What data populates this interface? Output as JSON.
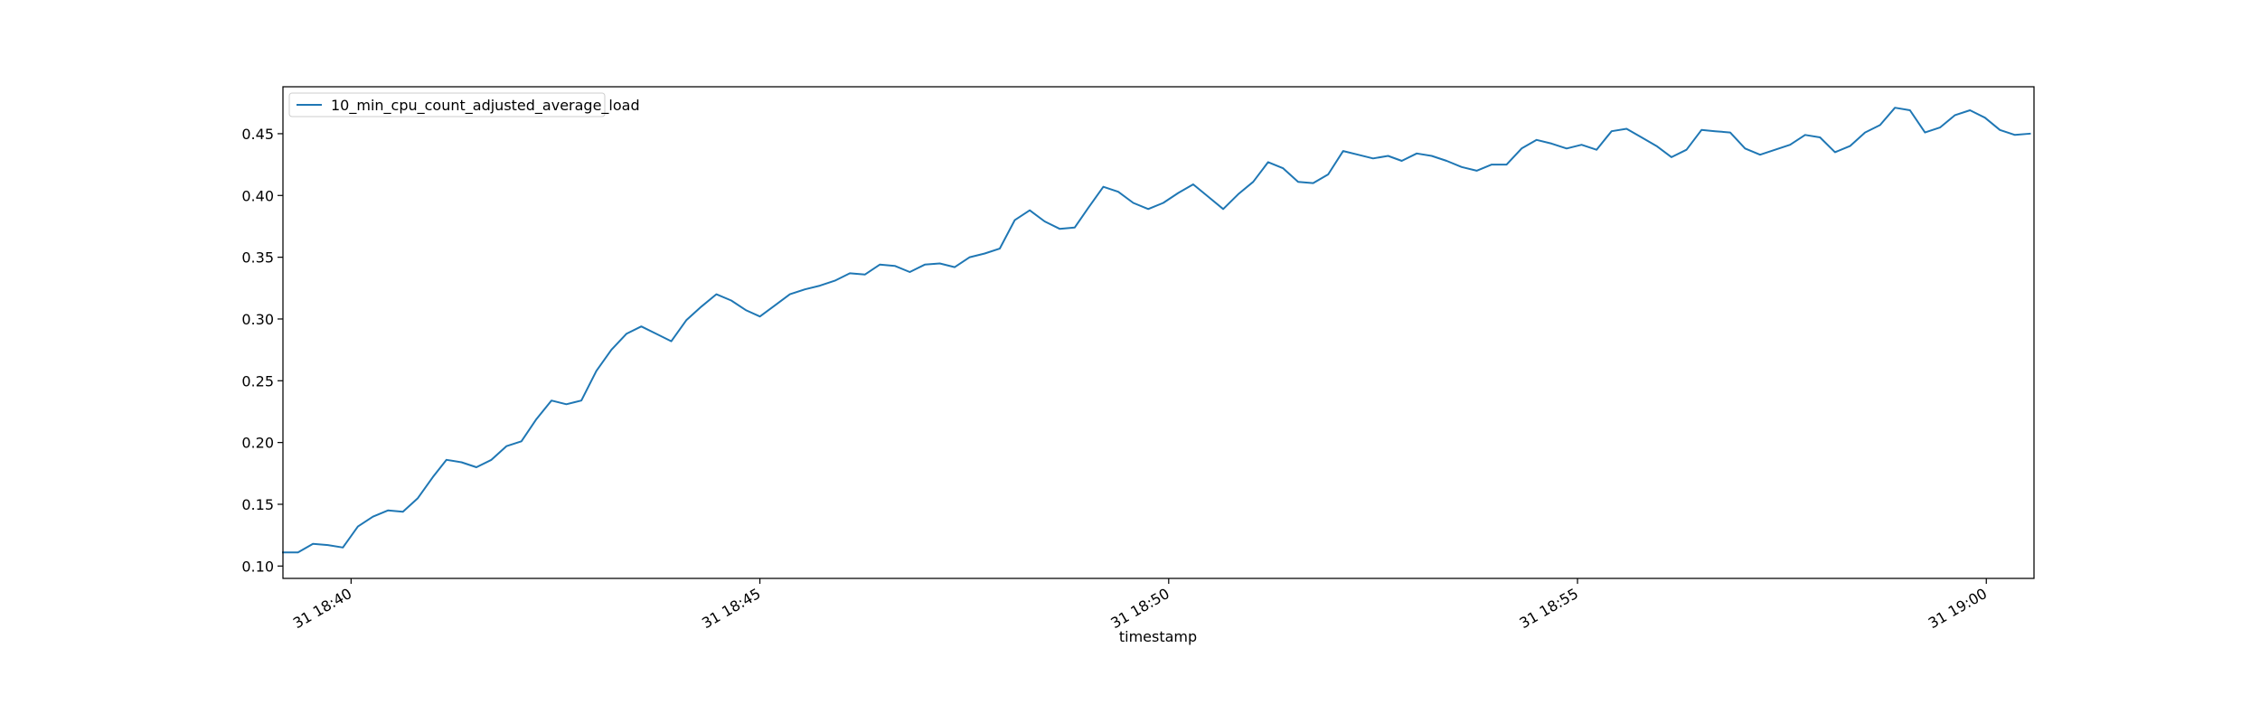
{
  "chart_data": {
    "type": "line",
    "title": "",
    "xlabel": "timestamp",
    "ylabel": "",
    "xlim": [
      "18:39:10",
      "19:00:35"
    ],
    "ylim": [
      0.09,
      0.488
    ],
    "grid": false,
    "legend_position": "top-left",
    "x_ticks": [
      {
        "value": "18:40:00",
        "label": "31 18:40"
      },
      {
        "value": "18:45:00",
        "label": "31 18:45"
      },
      {
        "value": "18:50:00",
        "label": "31 18:50"
      },
      {
        "value": "18:55:00",
        "label": "31 18:55"
      },
      {
        "value": "19:00:00",
        "label": "31 19:00"
      }
    ],
    "y_ticks": [
      {
        "value": 0.1,
        "label": "0.10"
      },
      {
        "value": 0.15,
        "label": "0.15"
      },
      {
        "value": 0.2,
        "label": "0.20"
      },
      {
        "value": 0.25,
        "label": "0.25"
      },
      {
        "value": 0.3,
        "label": "0.30"
      },
      {
        "value": 0.35,
        "label": "0.35"
      },
      {
        "value": 0.4,
        "label": "0.40"
      },
      {
        "value": 0.45,
        "label": "0.45"
      }
    ],
    "series": [
      {
        "name": "10_min_cpu_count_adjusted_average_load",
        "color": "#1f77b4",
        "x": [
          "18:39:10",
          "18:39:21",
          "18:39:32",
          "18:39:43",
          "18:39:54",
          "18:40:05",
          "18:40:16",
          "18:40:27",
          "18:40:38",
          "18:40:49",
          "18:41:00",
          "18:41:10",
          "18:41:21",
          "18:41:32",
          "18:41:43",
          "18:41:54",
          "18:42:05",
          "18:42:16",
          "18:42:27",
          "18:42:38",
          "18:42:49",
          "18:43:00",
          "18:43:11",
          "18:43:22",
          "18:43:33",
          "18:43:44",
          "18:43:55",
          "18:44:06",
          "18:44:17",
          "18:44:28",
          "18:44:39",
          "18:44:50",
          "18:45:00",
          "18:45:11",
          "18:45:22",
          "18:45:33",
          "18:45:44",
          "18:45:55",
          "18:46:06",
          "18:46:17",
          "18:46:28",
          "18:46:39",
          "18:46:50",
          "18:47:01",
          "18:47:12",
          "18:47:23",
          "18:47:34",
          "18:47:45",
          "18:47:56",
          "18:48:07",
          "18:48:18",
          "18:48:29",
          "18:48:40",
          "18:48:51",
          "18:49:01",
          "18:49:12",
          "18:49:23",
          "18:49:34",
          "18:49:45",
          "18:49:56",
          "18:50:07",
          "18:50:18",
          "18:50:29",
          "18:50:40",
          "18:50:51",
          "18:51:02",
          "18:51:13",
          "18:51:24",
          "18:51:35",
          "18:51:46",
          "18:51:57",
          "18:52:08",
          "18:52:19",
          "18:52:30",
          "18:52:41",
          "18:52:51",
          "18:53:02",
          "18:53:13",
          "18:53:24",
          "18:53:35",
          "18:53:46",
          "18:53:57",
          "18:54:08",
          "18:54:19",
          "18:54:30",
          "18:54:41",
          "18:54:52",
          "18:55:03",
          "18:55:14",
          "18:55:25",
          "18:55:36",
          "18:55:47",
          "18:55:58",
          "18:56:09",
          "18:56:20",
          "18:56:31",
          "18:56:41",
          "18:56:52",
          "18:57:03",
          "18:57:14",
          "18:57:25",
          "18:57:36",
          "18:57:47",
          "18:57:58",
          "18:58:09",
          "18:58:20",
          "18:58:31",
          "18:58:42",
          "18:58:53",
          "18:59:04",
          "18:59:15",
          "18:59:26",
          "18:59:37",
          "18:59:48",
          "18:59:59",
          "19:00:10",
          "19:00:21",
          "19:00:32"
        ],
        "y": [
          0.111,
          0.111,
          0.118,
          0.117,
          0.115,
          0.132,
          0.14,
          0.145,
          0.144,
          0.155,
          0.172,
          0.186,
          0.184,
          0.18,
          0.186,
          0.197,
          0.201,
          0.219,
          0.234,
          0.231,
          0.234,
          0.258,
          0.275,
          0.288,
          0.294,
          0.288,
          0.282,
          0.299,
          0.31,
          0.32,
          0.315,
          0.307,
          0.302,
          0.311,
          0.32,
          0.324,
          0.327,
          0.331,
          0.337,
          0.336,
          0.344,
          0.343,
          0.338,
          0.344,
          0.345,
          0.342,
          0.35,
          0.353,
          0.357,
          0.38,
          0.388,
          0.379,
          0.373,
          0.374,
          0.39,
          0.407,
          0.403,
          0.394,
          0.389,
          0.394,
          0.402,
          0.409,
          0.399,
          0.389,
          0.401,
          0.411,
          0.427,
          0.422,
          0.411,
          0.41,
          0.417,
          0.436,
          0.433,
          0.43,
          0.432,
          0.428,
          0.434,
          0.432,
          0.428,
          0.423,
          0.42,
          0.425,
          0.425,
          0.438,
          0.445,
          0.442,
          0.438,
          0.441,
          0.437,
          0.452,
          0.454,
          0.447,
          0.44,
          0.431,
          0.437,
          0.453,
          0.452,
          0.451,
          0.438,
          0.433,
          0.437,
          0.441,
          0.449,
          0.447,
          0.435,
          0.44,
          0.451,
          0.457,
          0.471,
          0.469,
          0.451,
          0.455,
          0.465,
          0.469,
          0.463,
          0.453,
          0.449,
          0.45
        ]
      }
    ]
  }
}
